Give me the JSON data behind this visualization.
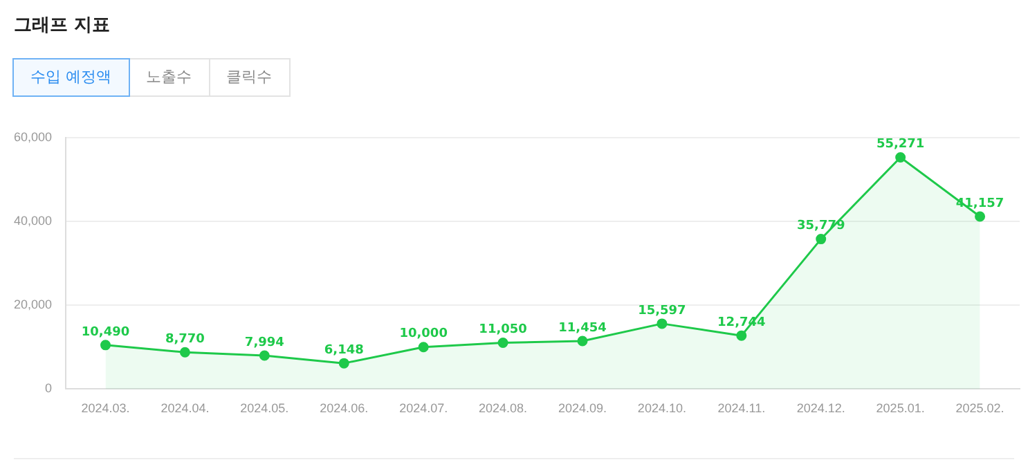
{
  "chart_data": {
    "type": "area",
    "title": "그래프 지표",
    "annotations": [
      "수입 예정액",
      "노출수",
      "클릭수"
    ],
    "categories": [
      "2024.03.",
      "2024.04.",
      "2024.05.",
      "2024.06.",
      "2024.07.",
      "2024.08.",
      "2024.09.",
      "2024.10.",
      "2024.11.",
      "2024.12.",
      "2025.01.",
      "2025.02."
    ],
    "values": [
      10490,
      8770,
      7994,
      6148,
      10000,
      11050,
      11454,
      15597,
      12744,
      35779,
      55271,
      41157
    ],
    "color": "#1ec94a",
    "ylim": [
      0,
      60000
    ],
    "yticks": [
      0,
      {
        "value": 20000,
        "label": "20,000"
      },
      {
        "value": 40000,
        "label": "40,000"
      },
      {
        "value": 60000,
        "label": "60,000"
      }
    ],
    "value_labels": [
      "10,490",
      "8,770",
      "7,994",
      "6,148",
      "10,000",
      "11,050",
      "11,454",
      "15,597",
      "12,744",
      "35,779",
      "55,271",
      "41,157"
    ],
    "grid": "y",
    "marker": "circle"
  }
}
